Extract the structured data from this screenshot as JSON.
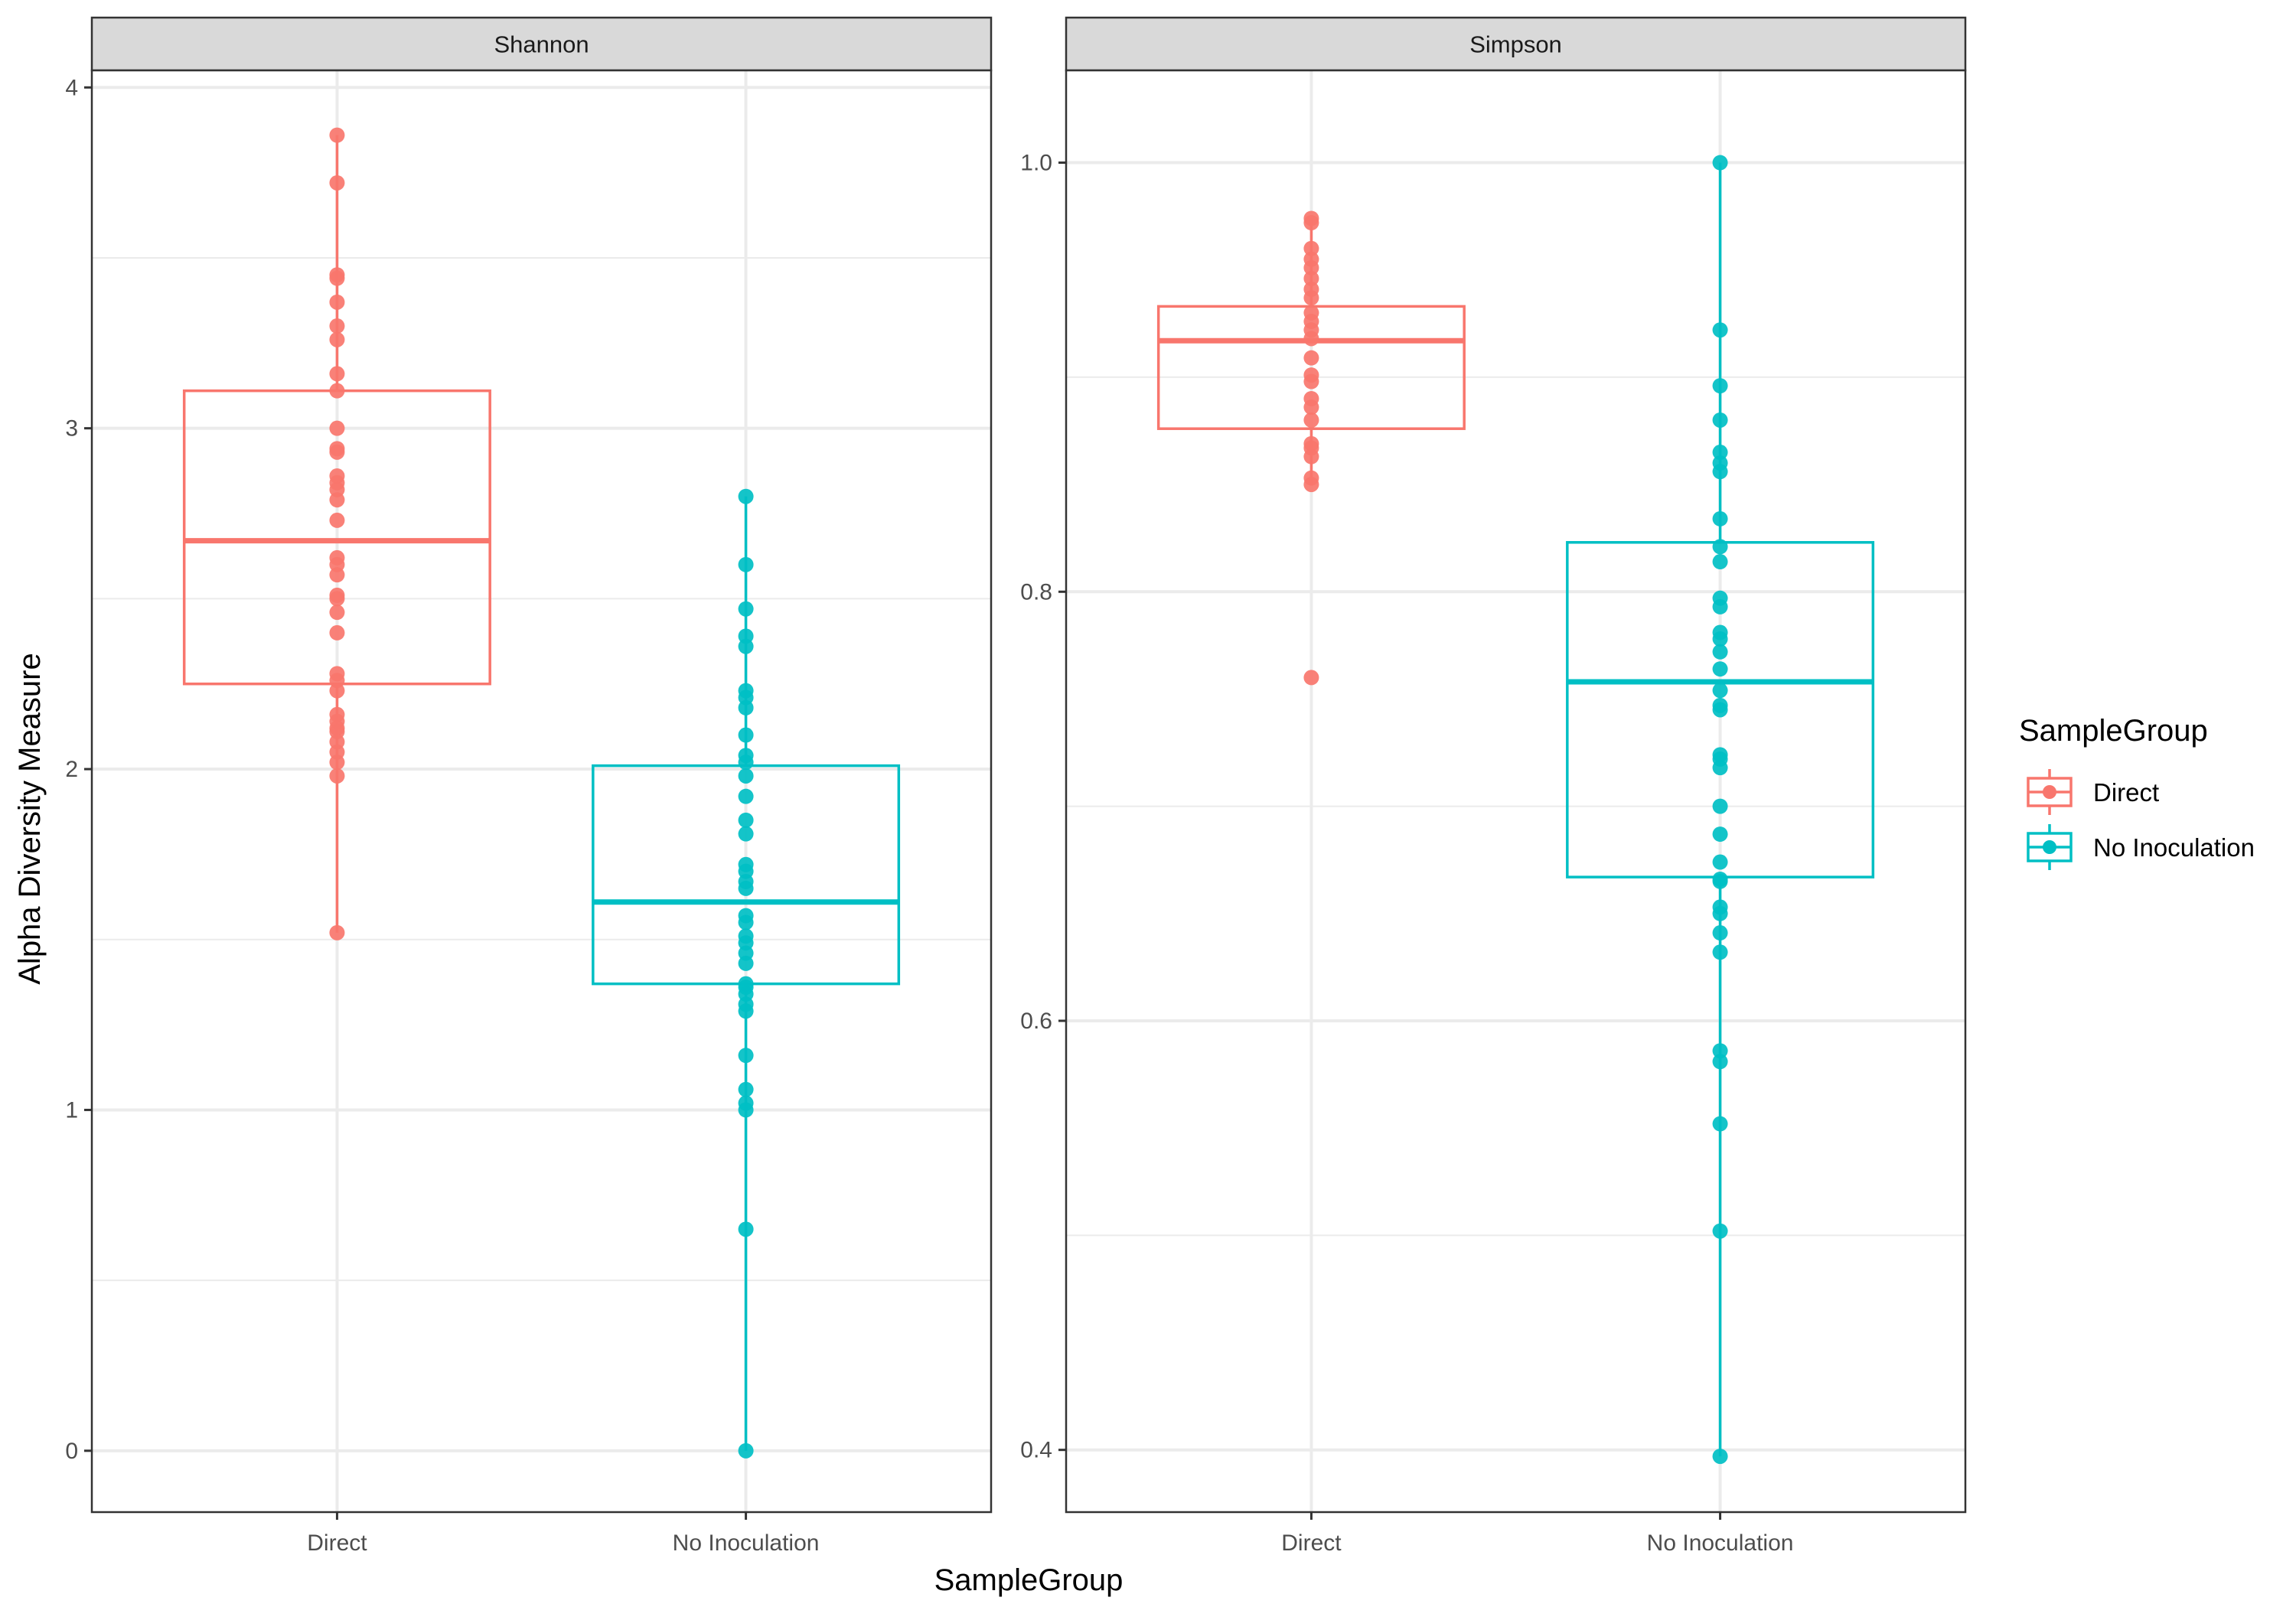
{
  "chart_data": {
    "type": "boxplot",
    "xlabel": "SampleGroup",
    "ylabel": "Alpha Diversity Measure",
    "categories": [
      "Direct",
      "No Inoculation"
    ],
    "colors": {
      "Direct": "#F8766D",
      "No Inoculation": "#00BFC4"
    },
    "grid": true,
    "legend": {
      "title": "SampleGroup",
      "position": "right",
      "entries": [
        "Direct",
        "No Inoculation"
      ]
    },
    "panels": [
      {
        "title": "Shannon",
        "ylim": [
          -0.18,
          4.05
        ],
        "yticks": [
          0,
          1,
          2,
          3,
          4
        ],
        "ytick_labels": [
          "0",
          "1",
          "2",
          "3",
          "4"
        ],
        "series": [
          {
            "name": "Direct",
            "box": {
              "lower_whisker": 1.52,
              "q1": 2.25,
              "median": 2.67,
              "q3": 3.11,
              "upper_whisker": 3.86
            },
            "points": [
              3.86,
              3.72,
              3.45,
              3.44,
              3.37,
              3.3,
              3.26,
              3.16,
              3.11,
              3.0,
              2.94,
              2.93,
              2.86,
              2.84,
              2.82,
              2.79,
              2.73,
              2.62,
              2.6,
              2.57,
              2.51,
              2.5,
              2.46,
              2.4,
              2.28,
              2.26,
              2.23,
              2.16,
              2.14,
              2.12,
              2.11,
              2.08,
              2.05,
              2.02,
              1.98,
              1.52
            ]
          },
          {
            "name": "No Inoculation",
            "box": {
              "lower_whisker": 0.0,
              "q1": 1.37,
              "median": 1.61,
              "q3": 2.01,
              "upper_whisker": 2.8
            },
            "points": [
              2.8,
              2.6,
              2.47,
              2.39,
              2.36,
              2.23,
              2.21,
              2.18,
              2.1,
              2.04,
              2.02,
              1.98,
              1.92,
              1.85,
              1.81,
              1.72,
              1.7,
              1.67,
              1.65,
              1.57,
              1.55,
              1.51,
              1.49,
              1.46,
              1.43,
              1.37,
              1.36,
              1.34,
              1.31,
              1.29,
              1.16,
              1.06,
              1.02,
              1.0,
              0.65,
              0.0
            ]
          }
        ]
      },
      {
        "title": "Simpson",
        "ylim": [
          0.371,
          1.043
        ],
        "yticks": [
          0.4,
          0.6,
          0.8,
          1.0
        ],
        "ytick_labels": [
          "0.4",
          "0.6",
          "0.8",
          "1.0"
        ],
        "series": [
          {
            "name": "Direct",
            "box": {
              "lower_whisker": 0.85,
              "q1": 0.876,
              "median": 0.917,
              "q3": 0.933,
              "upper_whisker": 0.974
            },
            "points": [
              0.974,
              0.972,
              0.96,
              0.955,
              0.951,
              0.946,
              0.941,
              0.937,
              0.93,
              0.926,
              0.922,
              0.918,
              0.909,
              0.901,
              0.898,
              0.89,
              0.886,
              0.88,
              0.869,
              0.867,
              0.863,
              0.853,
              0.85,
              0.76
            ]
          },
          {
            "name": "No Inoculation",
            "box": {
              "lower_whisker": 0.397,
              "q1": 0.667,
              "median": 0.758,
              "q3": 0.823,
              "upper_whisker": 1.0
            },
            "points": [
              1.0,
              0.922,
              0.896,
              0.88,
              0.865,
              0.86,
              0.856,
              0.834,
              0.821,
              0.814,
              0.797,
              0.793,
              0.781,
              0.778,
              0.772,
              0.764,
              0.754,
              0.747,
              0.745,
              0.724,
              0.722,
              0.718,
              0.7,
              0.687,
              0.674,
              0.666,
              0.665,
              0.653,
              0.65,
              0.641,
              0.632,
              0.586,
              0.581,
              0.552,
              0.502,
              0.397
            ]
          }
        ]
      }
    ]
  }
}
